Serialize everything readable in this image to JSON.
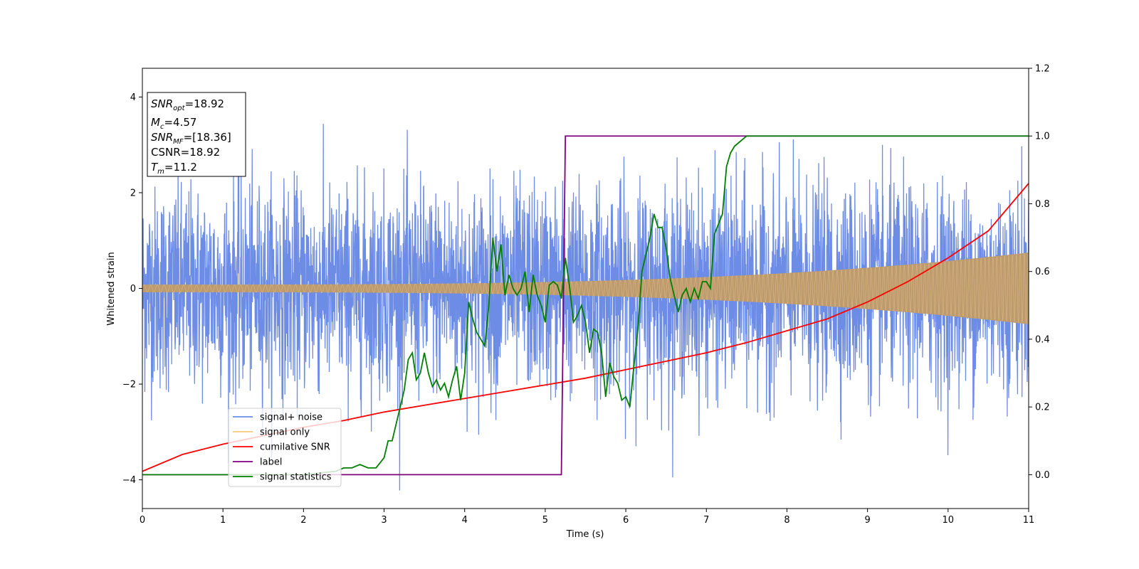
{
  "chart_data": {
    "type": "line",
    "xlabel": "Time (s)",
    "ylabel": "Whitened strain",
    "xlim": [
      0,
      11
    ],
    "ylim_left": [
      -4.6,
      4.6
    ],
    "ylim_right": [
      -0.1,
      1.2
    ],
    "x_ticks": [
      0,
      1,
      2,
      3,
      4,
      5,
      6,
      7,
      8,
      9,
      10,
      11
    ],
    "y_ticks_left": [
      -4,
      -2,
      0,
      2,
      4
    ],
    "y_ticks_right": [
      0.0,
      0.2,
      0.4,
      0.6,
      0.8,
      1.0,
      1.2
    ],
    "grid": false,
    "legend_position": "lower-left",
    "annotation": {
      "lines": [
        {
          "main": "SNR",
          "sub": "opt",
          "rest": "=18.92"
        },
        {
          "main": "M",
          "sub": "c",
          "rest": "=4.57"
        },
        {
          "main": "SNR",
          "sub": "MF",
          "rest": "=[18.36]"
        },
        {
          "main": "CSNR",
          "sub": "",
          "rest": "=18.92"
        },
        {
          "main": "T",
          "sub": "m",
          "rest": "=11.2"
        }
      ]
    },
    "series": [
      {
        "name": "signal+ noise",
        "color": "#6d8ce6",
        "axis": "left",
        "kind": "noise",
        "sigma": 1.0,
        "envelope_note": "roughly Gaussian noise spanning about -4 to 4"
      },
      {
        "name": "signal only",
        "color": "#f5c77e",
        "axis": "left",
        "kind": "chirp",
        "amplitude_start": 0.08,
        "amplitude_end": 0.75
      },
      {
        "name": "cumilative SNR",
        "color": "#ff0000",
        "axis": "right",
        "x": [
          0,
          0.5,
          1,
          1.5,
          2,
          2.5,
          3,
          3.5,
          4,
          4.5,
          5,
          5.5,
          6,
          6.5,
          7,
          7.5,
          8,
          8.5,
          9,
          9.5,
          10,
          10.5,
          11
        ],
        "y": [
          0.01,
          0.06,
          0.09,
          0.115,
          0.14,
          0.16,
          0.185,
          0.205,
          0.225,
          0.245,
          0.265,
          0.285,
          0.31,
          0.335,
          0.36,
          0.39,
          0.425,
          0.46,
          0.51,
          0.57,
          0.64,
          0.72,
          0.86
        ]
      },
      {
        "name": "label",
        "color": "#800080",
        "axis": "right",
        "x": [
          0,
          5.2,
          5.25,
          11
        ],
        "y": [
          0.0,
          0.0,
          1.0,
          1.0
        ]
      },
      {
        "name": "signal statistics",
        "color": "#008000",
        "axis": "right",
        "x": [
          0,
          0.5,
          1.0,
          1.5,
          2.0,
          2.4,
          2.5,
          2.6,
          2.7,
          2.8,
          2.9,
          3.0,
          3.05,
          3.1,
          3.15,
          3.2,
          3.25,
          3.3,
          3.35,
          3.4,
          3.45,
          3.5,
          3.55,
          3.6,
          3.65,
          3.7,
          3.75,
          3.8,
          3.85,
          3.9,
          3.95,
          4.0,
          4.05,
          4.1,
          4.15,
          4.2,
          4.25,
          4.3,
          4.35,
          4.4,
          4.45,
          4.5,
          4.55,
          4.6,
          4.65,
          4.7,
          4.75,
          4.8,
          4.85,
          4.9,
          4.95,
          5.0,
          5.05,
          5.1,
          5.15,
          5.2,
          5.25,
          5.3,
          5.35,
          5.4,
          5.45,
          5.5,
          5.55,
          5.6,
          5.65,
          5.7,
          5.75,
          5.8,
          5.85,
          5.9,
          5.95,
          6.0,
          6.05,
          6.1,
          6.15,
          6.2,
          6.25,
          6.3,
          6.35,
          6.4,
          6.45,
          6.5,
          6.55,
          6.6,
          6.65,
          6.7,
          6.75,
          6.8,
          6.85,
          6.9,
          6.95,
          7.0,
          7.05,
          7.1,
          7.15,
          7.2,
          7.25,
          7.3,
          7.35,
          7.4,
          7.45,
          7.5,
          7.55,
          7.6,
          7.65,
          7.7,
          7.75,
          7.8,
          7.9,
          8.0,
          8.2,
          8.5,
          9.0,
          9.5,
          10.0,
          10.5,
          11.0
        ],
        "y": [
          0.0,
          0.0,
          0.0,
          0.0,
          0.0,
          0.01,
          0.02,
          0.02,
          0.03,
          0.02,
          0.02,
          0.05,
          0.1,
          0.1,
          0.15,
          0.2,
          0.25,
          0.34,
          0.36,
          0.28,
          0.3,
          0.36,
          0.3,
          0.26,
          0.28,
          0.25,
          0.27,
          0.23,
          0.28,
          0.32,
          0.22,
          0.3,
          0.51,
          0.46,
          0.42,
          0.4,
          0.38,
          0.5,
          0.7,
          0.6,
          0.68,
          0.53,
          0.59,
          0.55,
          0.53,
          0.55,
          0.6,
          0.48,
          0.59,
          0.53,
          0.5,
          0.45,
          0.56,
          0.57,
          0.56,
          0.52,
          0.64,
          0.56,
          0.45,
          0.47,
          0.5,
          0.45,
          0.36,
          0.43,
          0.42,
          0.36,
          0.23,
          0.33,
          0.29,
          0.27,
          0.22,
          0.23,
          0.2,
          0.32,
          0.43,
          0.6,
          0.65,
          0.7,
          0.77,
          0.73,
          0.73,
          0.67,
          0.58,
          0.53,
          0.48,
          0.53,
          0.55,
          0.51,
          0.55,
          0.52,
          0.57,
          0.57,
          0.55,
          0.71,
          0.74,
          0.77,
          0.91,
          0.95,
          0.97,
          0.98,
          0.99,
          1.0,
          1.0,
          1.0,
          1.0,
          1.0,
          1.0,
          1.0,
          1.0,
          1.0,
          1.0,
          1.0,
          1.0,
          1.0,
          1.0,
          1.0,
          1.0
        ]
      }
    ]
  }
}
